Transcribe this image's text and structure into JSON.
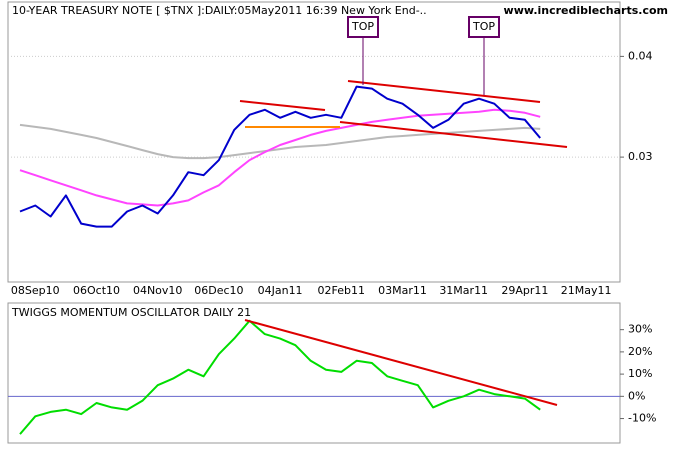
{
  "chart_data": [
    {
      "type": "line",
      "title": "10-YEAR TREASURY NOTE [ $TNX ]:DAILY:05May2011 16:39 New York End-..",
      "subtitle": "www.incrediblecharts.com",
      "annotations": [
        "TOP",
        "TOP"
      ],
      "categories": [
        null,
        "08Sep10",
        null,
        null,
        null,
        "06Oct10",
        null,
        null,
        null,
        "04Nov10",
        null,
        null,
        null,
        "06Dec10",
        null,
        null,
        null,
        "04Jan11",
        null,
        null,
        null,
        "02Feb11",
        null,
        null,
        null,
        "03Mar11",
        null,
        null,
        null,
        "31Mar11",
        null,
        null,
        null,
        "29Apr11",
        null,
        null,
        null,
        "21May11"
      ],
      "series": [
        {
          "color": "#b8b8b8",
          "values": [
            0.0332,
            0.033,
            0.0328,
            0.0325,
            0.0322,
            0.0319,
            0.0315,
            0.0311,
            0.0307,
            0.0303,
            0.03,
            0.0299,
            0.0299,
            0.03,
            0.0302,
            0.0304,
            0.0306,
            0.0308,
            0.031,
            0.0311,
            0.0312,
            0.0314,
            0.0316,
            0.0318,
            0.032,
            0.0321,
            0.0322,
            0.0323,
            0.0324,
            0.0325,
            0.0326,
            0.0327,
            0.0328,
            0.0329,
            0.0328,
            null,
            null,
            null
          ]
        },
        {
          "color": "#ff44ff",
          "values": [
            0.0287,
            0.0282,
            0.0277,
            0.0272,
            0.0267,
            0.0262,
            0.0258,
            0.0254,
            0.0253,
            0.0252,
            0.0254,
            0.0257,
            0.0265,
            0.0272,
            0.0285,
            0.0297,
            0.0305,
            0.0312,
            0.0317,
            0.0322,
            0.0326,
            0.0329,
            0.0332,
            0.0335,
            0.0337,
            0.0339,
            0.0341,
            0.0342,
            0.0343,
            0.0344,
            0.0345,
            0.0347,
            0.0346,
            0.0344,
            0.034,
            null,
            null,
            null
          ]
        },
        {
          "color": "#0000cc",
          "values": [
            0.0246,
            0.0252,
            0.0241,
            0.0262,
            0.0234,
            0.0231,
            0.0231,
            0.0246,
            0.0252,
            0.0244,
            0.0262,
            0.0285,
            0.0282,
            0.0297,
            0.0327,
            0.0342,
            0.0347,
            0.0339,
            0.0345,
            0.0339,
            0.0342,
            0.0339,
            0.037,
            0.0368,
            0.0358,
            0.0353,
            0.0342,
            0.0329,
            0.0337,
            0.0353,
            0.0358,
            0.0353,
            0.0339,
            0.0337,
            0.0319,
            null,
            null,
            null
          ]
        }
      ],
      "ylim": [
        0.0176,
        0.0454
      ],
      "yticks": [
        0.03,
        0.04
      ],
      "grid": true
    },
    {
      "type": "line",
      "title": "TWIGGS MOMENTUM OSCILLATOR DAILY 21",
      "series": [
        {
          "color": "#00dd00",
          "values": [
            -17,
            -9,
            -7,
            -6,
            -8,
            -3,
            -5,
            -6,
            -2,
            5,
            8,
            12,
            9,
            19,
            26,
            34,
            28,
            26,
            23,
            16,
            12,
            11,
            16,
            15,
            9,
            7,
            5,
            -5,
            -2,
            0,
            3,
            1,
            0,
            -1,
            -6,
            null,
            null,
            null
          ]
        }
      ],
      "ylim": [
        -21,
        42
      ],
      "yticks": [
        {
          "value": -10,
          "label": "-10%"
        },
        {
          "value": 0,
          "label": "0%"
        },
        {
          "value": 10,
          "label": "10%"
        },
        {
          "value": 20,
          "label": "20%"
        },
        {
          "value": 30,
          "label": "30%"
        }
      ],
      "zero_line": true
    }
  ]
}
